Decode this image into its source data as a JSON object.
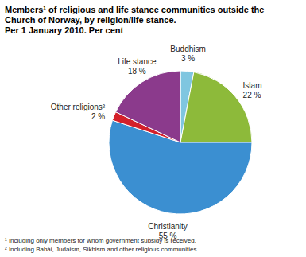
{
  "chart_data": {
    "type": "pie",
    "title": "Members¹ of religious and life stance communities outside the Church of Norway, by religion/life stance.",
    "subtitle": "Per 1 January 2010. Per cent",
    "categories": [
      "Buddhism",
      "Islam",
      "Christianity",
      "Other religions²",
      "Life stance"
    ],
    "values": [
      3,
      22,
      55,
      2,
      18
    ],
    "value_labels": [
      "3 %",
      "22 %",
      "55 %",
      "2 %",
      "18 %"
    ],
    "colors": [
      "#7fc6e0",
      "#8dba3a",
      "#3b8fd1",
      "#d4202a",
      "#8b3a8c"
    ],
    "data_labels": true,
    "annotations": [
      "¹ Including only members for whom government subsidy is received.",
      "² Including Bahài, Judaism, Sikhism and other religious communities."
    ]
  }
}
